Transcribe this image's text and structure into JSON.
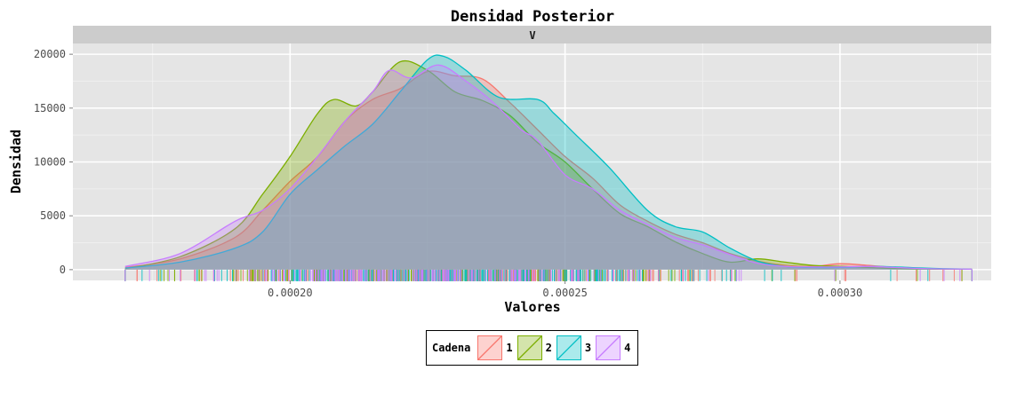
{
  "chart_data": {
    "type": "area",
    "title": "Densidad Posterior",
    "facet_label": "V",
    "xlabel": "Valores",
    "ylabel": "Densidad",
    "xlim": [
      0.0001605,
      0.0003275
    ],
    "ylim": [
      -1000,
      21000
    ],
    "x_ticks": [
      0.0002,
      0.00025,
      0.0003
    ],
    "x_tick_labels": [
      "0.00020",
      "0.00025",
      "0.00030"
    ],
    "y_ticks": [
      0,
      5000,
      10000,
      15000,
      20000
    ],
    "y_tick_labels": [
      "0",
      "5000",
      "10000",
      "15000",
      "20000"
    ],
    "grid": true,
    "legend_position": "bottom",
    "legend_title": "Cadena",
    "series": [
      {
        "name": "1",
        "color": "#F8766D",
        "points": [
          [
            0.00017,
            200
          ],
          [
            0.00018,
            1000
          ],
          [
            0.00019,
            3000
          ],
          [
            0.000195,
            5500
          ],
          [
            0.0002,
            8200
          ],
          [
            0.000205,
            10500
          ],
          [
            0.00021,
            13800
          ],
          [
            0.000215,
            15800
          ],
          [
            0.00022,
            16800
          ],
          [
            0.000225,
            18400
          ],
          [
            0.00023,
            18000
          ],
          [
            0.000235,
            17700
          ],
          [
            0.00024,
            15500
          ],
          [
            0.000245,
            13000
          ],
          [
            0.00025,
            10500
          ],
          [
            0.000255,
            8500
          ],
          [
            0.00026,
            6000
          ],
          [
            0.000265,
            4500
          ],
          [
            0.00027,
            3300
          ],
          [
            0.000275,
            2500
          ],
          [
            0.00028,
            1500
          ],
          [
            0.000285,
            800
          ],
          [
            0.00029,
            400
          ],
          [
            0.000295,
            300
          ],
          [
            0.0003,
            550
          ],
          [
            0.000305,
            400
          ],
          [
            0.00031,
            200
          ],
          [
            0.000315,
            80
          ],
          [
            0.00032,
            60
          ],
          [
            0.000324,
            40
          ]
        ]
      },
      {
        "name": "2",
        "color": "#7CAE00",
        "points": [
          [
            0.00017,
            100
          ],
          [
            0.00018,
            1200
          ],
          [
            0.00019,
            3800
          ],
          [
            0.000195,
            7000
          ],
          [
            0.0002,
            10500
          ],
          [
            0.000205,
            14500
          ],
          [
            0.000208,
            15800
          ],
          [
            0.000212,
            15200
          ],
          [
            0.000215,
            16500
          ],
          [
            0.00022,
            19300
          ],
          [
            0.000225,
            18500
          ],
          [
            0.00023,
            16500
          ],
          [
            0.000235,
            15700
          ],
          [
            0.00024,
            14300
          ],
          [
            0.000245,
            11800
          ],
          [
            0.00025,
            10000
          ],
          [
            0.000255,
            7500
          ],
          [
            0.00026,
            5200
          ],
          [
            0.000265,
            4000
          ],
          [
            0.00027,
            2600
          ],
          [
            0.000275,
            1500
          ],
          [
            0.00028,
            700
          ],
          [
            0.000285,
            1000
          ],
          [
            0.00029,
            700
          ],
          [
            0.000295,
            400
          ],
          [
            0.0003,
            300
          ],
          [
            0.000305,
            200
          ],
          [
            0.00031,
            100
          ],
          [
            0.000315,
            60
          ],
          [
            0.000324,
            40
          ]
        ]
      },
      {
        "name": "3",
        "color": "#00BFC4",
        "points": [
          [
            0.00017,
            150
          ],
          [
            0.00018,
            700
          ],
          [
            0.00019,
            2000
          ],
          [
            0.000195,
            3500
          ],
          [
            0.0002,
            7000
          ],
          [
            0.000205,
            9300
          ],
          [
            0.00021,
            11500
          ],
          [
            0.000215,
            13500
          ],
          [
            0.00022,
            16500
          ],
          [
            0.000225,
            19500
          ],
          [
            0.000228,
            19800
          ],
          [
            0.000232,
            18500
          ],
          [
            0.000238,
            16000
          ],
          [
            0.000245,
            15800
          ],
          [
            0.000248,
            14500
          ],
          [
            0.000252,
            12500
          ],
          [
            0.000258,
            9500
          ],
          [
            0.000265,
            5500
          ],
          [
            0.00027,
            4000
          ],
          [
            0.000275,
            3500
          ],
          [
            0.00028,
            2000
          ],
          [
            0.000285,
            800
          ],
          [
            0.00029,
            300
          ],
          [
            0.000295,
            200
          ],
          [
            0.0003,
            200
          ],
          [
            0.000305,
            300
          ],
          [
            0.00031,
            250
          ],
          [
            0.000315,
            150
          ],
          [
            0.00032,
            80
          ],
          [
            0.000324,
            40
          ]
        ]
      },
      {
        "name": "4",
        "color": "#C77CFF",
        "points": [
          [
            0.00017,
            300
          ],
          [
            0.00018,
            1500
          ],
          [
            0.00019,
            4500
          ],
          [
            0.000195,
            5500
          ],
          [
            0.0002,
            7500
          ],
          [
            0.000205,
            10500
          ],
          [
            0.00021,
            13800
          ],
          [
            0.000215,
            16500
          ],
          [
            0.000218,
            18500
          ],
          [
            0.000222,
            17800
          ],
          [
            0.000227,
            19000
          ],
          [
            0.000232,
            17500
          ],
          [
            0.000237,
            15500
          ],
          [
            0.000242,
            13000
          ],
          [
            0.000245,
            12000
          ],
          [
            0.00025,
            8800
          ],
          [
            0.000255,
            7500
          ],
          [
            0.00026,
            5500
          ],
          [
            0.000265,
            4200
          ],
          [
            0.00027,
            3000
          ],
          [
            0.000275,
            2300
          ],
          [
            0.00028,
            1400
          ],
          [
            0.000285,
            600
          ],
          [
            0.00029,
            300
          ],
          [
            0.000295,
            250
          ],
          [
            0.0003,
            250
          ],
          [
            0.000305,
            300
          ],
          [
            0.00031,
            200
          ],
          [
            0.000315,
            100
          ],
          [
            0.000324,
            50
          ]
        ]
      }
    ]
  }
}
